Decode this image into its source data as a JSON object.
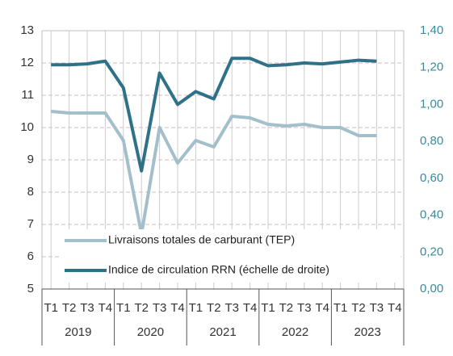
{
  "chart_data": {
    "type": "line",
    "categories": [
      "T1",
      "T2",
      "T3",
      "T4",
      "T1",
      "T2",
      "T3",
      "T4",
      "T1",
      "T2",
      "T3",
      "T4",
      "T1",
      "T2",
      "T3",
      "T4",
      "T1",
      "T2",
      "T3",
      "T4"
    ],
    "years": [
      "2019",
      "2020",
      "2021",
      "2022",
      "2023"
    ],
    "series": [
      {
        "name": "Livraisons totales de carburant (TEP)",
        "color": "#a3bfcc",
        "values": [
          10.5,
          10.45,
          10.45,
          10.45,
          9.6,
          6.7,
          10.0,
          8.9,
          9.6,
          9.4,
          10.35,
          10.3,
          10.1,
          10.05,
          10.1,
          10.0,
          10.0,
          9.75,
          9.75,
          null
        ]
      },
      {
        "name": "Indice de circulation RRN (échelle de droite)",
        "color": "#2e7189",
        "axis": "y2",
        "values": [
          1.215,
          1.215,
          1.22,
          1.235,
          1.09,
          0.64,
          1.17,
          1.0,
          1.07,
          1.03,
          1.25,
          1.25,
          1.21,
          1.215,
          1.225,
          1.22,
          1.23,
          1.24,
          1.235,
          null
        ]
      }
    ],
    "ylim": [
      5,
      13
    ],
    "yticks": [
      5,
      6,
      7,
      8,
      9,
      10,
      11,
      12,
      13
    ],
    "y2lim": [
      0,
      1.4
    ],
    "y2ticks": [
      {
        "value": 0,
        "label": "0,00"
      },
      {
        "value": 0.2,
        "label": "0,20"
      },
      {
        "value": 0.4,
        "label": "0,40"
      },
      {
        "value": 0.6,
        "label": "0,60"
      },
      {
        "value": 0.8,
        "label": "0,80"
      },
      {
        "value": 1.0,
        "label": "1,00"
      },
      {
        "value": 1.2,
        "label": "1,20"
      },
      {
        "value": 1.4,
        "label": "1,40"
      }
    ],
    "grid": true
  }
}
